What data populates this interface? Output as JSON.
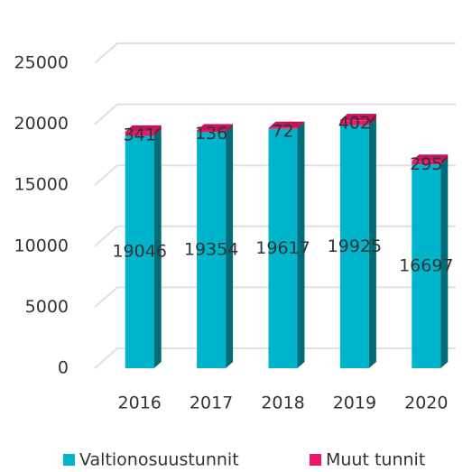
{
  "chart_data": {
    "type": "bar3d_stacked",
    "categories": [
      "2016",
      "2017",
      "2018",
      "2019",
      "2020"
    ],
    "series": [
      {
        "name": "Valtionosuustunnit",
        "color": "#00b4cc",
        "values": [
          19046,
          19354,
          19617,
          19925,
          16697
        ]
      },
      {
        "name": "Muut tunnit",
        "color": "#e8196a",
        "values": [
          341,
          136,
          72,
          402,
          295
        ]
      }
    ],
    "ylim": [
      0,
      25000
    ],
    "yticks": [
      0,
      5000,
      10000,
      15000,
      20000,
      25000
    ],
    "grid": true,
    "legend": "bottom"
  }
}
